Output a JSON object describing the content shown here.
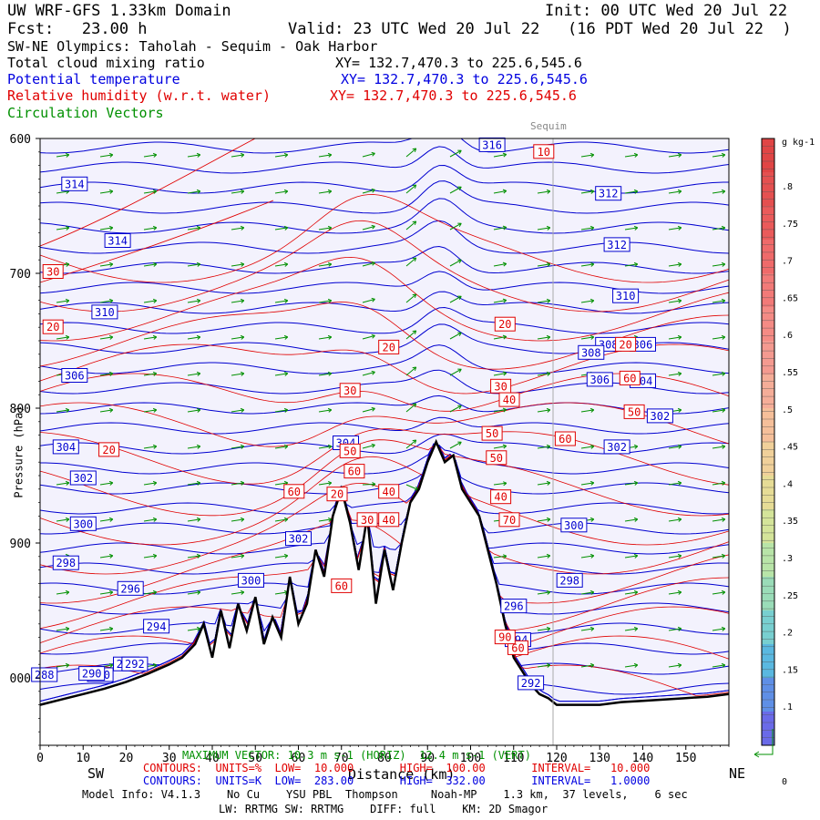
{
  "header": {
    "model_domain": "UW WRF-GFS 1.33km Domain",
    "init": "Init: 00 UTC Wed 20 Jul 22",
    "fcst": "Fcst:   23.00 h",
    "valid": "Valid: 23 UTC Wed 20 Jul 22   (16 PDT Wed 20 Jul 22  )",
    "cross_section": "SW-NE Olympics: Taholah - Sequim - Oak Harbor",
    "field1": "Total cloud mixing ratio",
    "field1_xy": "XY= 132.7,470.3 to 225.6,545.6",
    "field2": "Potential temperature",
    "field2_xy": "XY= 132.7,470.3 to 225.6,545.6",
    "field3": "Relative humidity (w.r.t. water)",
    "field3_xy": "XY= 132.7,470.3 to 225.6,545.6",
    "field4": "Circulation Vectors"
  },
  "colors": {
    "theta": "#0000d0",
    "rh": "#e00000",
    "vectors": "#009000",
    "sky": "#f3f2fd",
    "terrain": "#000000"
  },
  "chart_data": {
    "type": "cross-section",
    "xlabel": "Distance (km)",
    "ylabel": "Pressure (hPa)",
    "xlim": [
      0,
      160
    ],
    "ylim": [
      1050,
      600
    ],
    "x_ticks": [
      "0",
      "10",
      "20",
      "30",
      "40",
      "50",
      "60",
      "70",
      "80",
      "90",
      "100",
      "110",
      "120",
      "130",
      "140",
      "150"
    ],
    "y_ticks": [
      "600",
      "700",
      "800",
      "900",
      "1000"
    ],
    "y_tick_values": [
      600,
      700,
      800,
      900,
      1000
    ],
    "y_tick_labels_shown": [
      "600",
      "700",
      "800",
      "900",
      "000"
    ],
    "left_end": "SW",
    "right_end": "NE",
    "location_marker": {
      "label": "Sequim",
      "x": 119
    },
    "terrain": {
      "x": [
        0,
        5,
        10,
        15,
        20,
        25,
        30,
        33,
        36,
        38,
        40,
        42,
        44,
        46,
        48,
        50,
        52,
        54,
        56,
        58,
        60,
        62,
        64,
        66,
        68,
        70,
        72,
        74,
        76,
        78,
        80,
        82,
        84,
        86,
        88,
        90,
        92,
        94,
        96,
        98,
        100,
        102,
        104,
        106,
        108,
        110,
        112,
        114,
        116,
        118,
        120,
        125,
        130,
        135,
        140,
        145,
        150,
        155,
        160
      ],
      "p": [
        1020,
        1016,
        1012,
        1008,
        1003,
        997,
        990,
        985,
        975,
        960,
        985,
        950,
        978,
        945,
        965,
        940,
        975,
        955,
        970,
        925,
        960,
        945,
        905,
        925,
        880,
        860,
        885,
        920,
        880,
        945,
        905,
        935,
        900,
        870,
        860,
        840,
        825,
        840,
        835,
        860,
        870,
        880,
        905,
        930,
        960,
        985,
        995,
        1005,
        1012,
        1015,
        1020,
        1020,
        1020,
        1018,
        1017,
        1016,
        1015,
        1014,
        1012
      ]
    },
    "theta_series": {
      "name": "Potential temperature",
      "units": "K",
      "contour_labels": [
        "316",
        "314",
        "314",
        "312",
        "312",
        "310",
        "310",
        "308",
        "308",
        "306",
        "306",
        "306",
        "304",
        "304",
        "302",
        "302",
        "302",
        "300",
        "300",
        "298",
        "298",
        "296",
        "296",
        "294",
        "294",
        "292",
        "292",
        "290",
        "288",
        "290",
        "292",
        "304",
        "302",
        "300"
      ]
    },
    "rh_series": {
      "name": "Relative humidity (w.r.t. water)",
      "units": "%",
      "contour_labels": [
        "10",
        "30",
        "20",
        "20",
        "20",
        "30",
        "30",
        "40",
        "20",
        "60",
        "50",
        "50",
        "60",
        "40",
        "60",
        "50",
        "40",
        "70",
        "60",
        "40",
        "60",
        "20",
        "60",
        "50",
        "90",
        "30",
        "20"
      ]
    },
    "cloud_colorbar": {
      "units": "g kg-1",
      "ticks": [
        ".8",
        ".75",
        ".7",
        ".65",
        ".6",
        ".55",
        ".5",
        ".45",
        ".4",
        ".35",
        ".3",
        ".25",
        ".2",
        ".15",
        ".1",
        "0"
      ],
      "colors": [
        "#e04545",
        "#e45050",
        "#ea5a5a",
        "#ef6a6a",
        "#f27a78",
        "#f48b85",
        "#f49a90",
        "#f5ad98",
        "#f5bf9a",
        "#f0d09a",
        "#e6dc96",
        "#d4e49a",
        "#b8e4a8",
        "#9adcb8",
        "#78cfd0",
        "#5ab8e0",
        "#5f8fe6",
        "#6a6ae8"
      ]
    },
    "max_vector": {
      "horiz": "10.3",
      "vert": "12.4",
      "units": "m s-1"
    },
    "contour_info": {
      "rh": {
        "units": "%",
        "low": "10.000",
        "high": "100.00",
        "interval": "10.000"
      },
      "theta": {
        "units": "K",
        "low": "283.00",
        "high": "332.00",
        "interval": "1.0000"
      }
    }
  },
  "footer": {
    "maxvec_text": "MAXIMUM VECTOR: 10.3 m s",
    "maxvec_horiz": "-1 (HORIZ)",
    "maxvec_vert": "12.4 m s",
    "maxvec_vert2": "-1 (VERT)",
    "rh_contours": "CONTOURS:  UNITS=%  LOW=  10.000       HIGH=  100.00       INTERVAL=   10.000",
    "theta_contours": "CONTOURS:  UNITS=K  LOW=  283.00       HIGH=  332.00       INTERVAL=   1.0000",
    "model_info": "Model Info: V4.1.3    No Cu    YSU PBL  Thompson     Noah-MP    1.3 km,  37 levels,    6 sec",
    "model_info2": "LW: RRTMG SW: RRTMG    DIFF: full    KM: 2D Smagor"
  }
}
